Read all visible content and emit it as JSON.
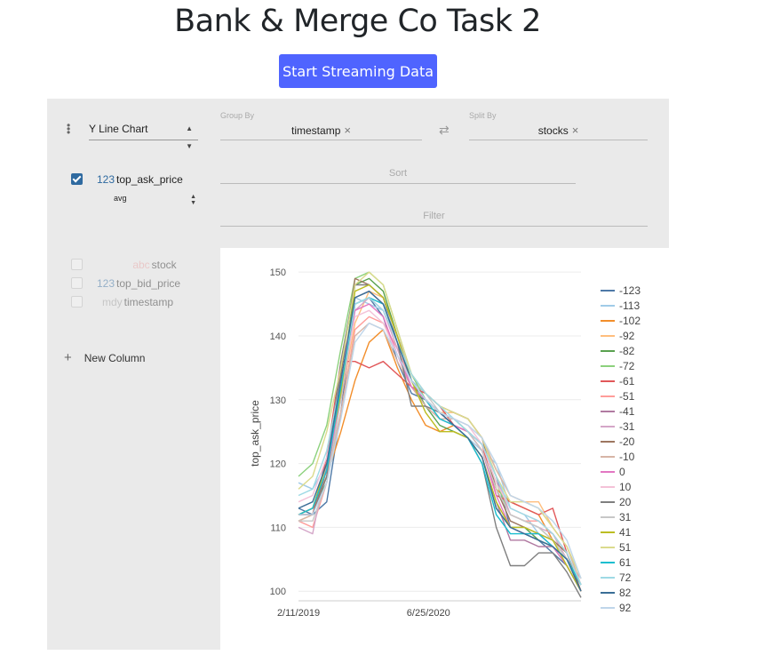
{
  "page": {
    "title": "Bank & Merge Co Task 2",
    "stream_button": "Start Streaming Data"
  },
  "config": {
    "plugin": "Y Line Chart",
    "group_by_label": "Group By",
    "group_by_value": "timestamp",
    "split_by_label": "Split By",
    "split_by_value": "stocks",
    "sort_placeholder": "Sort",
    "filter_placeholder": "Filter",
    "remove_glyph": "×",
    "swap_glyph": "⇄"
  },
  "columns": {
    "active": [
      {
        "type": "123",
        "name": "top_ask_price",
        "aggregate": "avg",
        "checked": true
      }
    ],
    "inactive": [
      {
        "type": "abc",
        "name": "stock",
        "type_color": "#e8a0a0"
      },
      {
        "type": "123",
        "name": "top_bid_price",
        "type_color": "#2f6aa0"
      },
      {
        "type": "mdy",
        "name": "timestamp",
        "type_color": "#999999"
      }
    ],
    "new_column": "New Column"
  },
  "chart_data": {
    "type": "line",
    "ylabel": "top_ask_price",
    "xlabel": "",
    "ylim": [
      98.5,
      151
    ],
    "yticks": [
      "150",
      "140",
      "130",
      "120",
      "110",
      "100"
    ],
    "xticks": [
      "2/11/2019",
      "6/25/2020"
    ],
    "x": [
      0,
      0.05,
      0.1,
      0.15,
      0.2,
      0.25,
      0.3,
      0.35,
      0.4,
      0.45,
      0.5,
      0.55,
      0.6,
      0.65,
      0.7,
      0.75,
      0.8,
      0.85,
      0.9,
      0.95,
      1.0
    ],
    "legend_position": "right",
    "series": [
      {
        "name": "-123",
        "color": "#4e79a7",
        "values": [
          113,
          112,
          114,
          128,
          145,
          146,
          143,
          136,
          131,
          130,
          128,
          127,
          125,
          123,
          118,
          110,
          109,
          108,
          106,
          104,
          100
        ]
      },
      {
        "name": "-113",
        "color": "#a0cbe8",
        "values": [
          117,
          116,
          120,
          130,
          146,
          145,
          144,
          139,
          133,
          131,
          129,
          126,
          124,
          122,
          120,
          113,
          112,
          109,
          107,
          105,
          101
        ]
      },
      {
        "name": "-102",
        "color": "#f28e2b",
        "values": [
          112,
          113,
          118,
          125,
          133,
          139,
          141,
          135,
          130,
          126,
          125,
          126,
          125,
          122,
          116,
          114,
          113,
          112,
          108,
          106,
          100
        ]
      },
      {
        "name": "-92",
        "color": "#ffbe7d",
        "values": [
          111,
          112,
          119,
          130,
          142,
          147,
          146,
          140,
          134,
          130,
          128,
          128,
          127,
          124,
          119,
          115,
          114,
          114,
          110,
          107,
          102
        ]
      },
      {
        "name": "-82",
        "color": "#59a14f",
        "values": [
          112,
          113,
          117,
          131,
          148,
          149,
          147,
          140,
          133,
          129,
          126,
          125,
          124,
          121,
          113,
          110,
          110,
          108,
          107,
          104,
          100
        ]
      },
      {
        "name": "-72",
        "color": "#8cd17d",
        "values": [
          118,
          120,
          126,
          138,
          149,
          150,
          148,
          141,
          134,
          130,
          128,
          127,
          125,
          123,
          117,
          112,
          111,
          110,
          108,
          105,
          101
        ]
      },
      {
        "name": "-61",
        "color": "#e15759",
        "values": [
          112,
          112,
          121,
          136,
          136,
          135,
          136,
          134,
          132,
          131,
          129,
          126,
          125,
          123,
          115,
          114,
          113,
          112,
          113,
          106,
          100
        ]
      },
      {
        "name": "-51",
        "color": "#ff9d9a",
        "values": [
          111,
          110,
          117,
          128,
          141,
          143,
          142,
          138,
          133,
          130,
          127,
          126,
          125,
          122,
          116,
          112,
          111,
          111,
          109,
          106,
          101
        ]
      },
      {
        "name": "-41",
        "color": "#b07aa1",
        "values": [
          112,
          112,
          118,
          132,
          146,
          147,
          145,
          139,
          133,
          130,
          128,
          126,
          124,
          121,
          114,
          108,
          108,
          107,
          107,
          105,
          101
        ]
      },
      {
        "name": "-31",
        "color": "#d4a6c8",
        "values": [
          110,
          109,
          120,
          135,
          144,
          146,
          144,
          138,
          132,
          129,
          127,
          126,
          125,
          123,
          118,
          112,
          111,
          110,
          109,
          105,
          102
        ]
      },
      {
        "name": "-20",
        "color": "#9d7660",
        "values": [
          112,
          112,
          119,
          134,
          149,
          148,
          146,
          140,
          134,
          131,
          129,
          128,
          127,
          124,
          116,
          111,
          110,
          109,
          108,
          106,
          100
        ]
      },
      {
        "name": "-10",
        "color": "#d7b5a6",
        "values": [
          111,
          112,
          118,
          128,
          140,
          142,
          141,
          136,
          132,
          129,
          127,
          127,
          126,
          124,
          119,
          115,
          114,
          113,
          110,
          107,
          101
        ]
      },
      {
        "name": "0",
        "color": "#e377c2",
        "values": [
          112,
          113,
          119,
          130,
          144,
          145,
          143,
          137,
          132,
          130,
          128,
          126,
          125,
          122,
          115,
          110,
          109,
          109,
          107,
          104,
          100
        ]
      },
      {
        "name": "10",
        "color": "#f4c2d8",
        "values": [
          114,
          115,
          121,
          131,
          143,
          144,
          142,
          137,
          133,
          130,
          128,
          127,
          126,
          123,
          117,
          113,
          112,
          111,
          109,
          106,
          101
        ]
      },
      {
        "name": "20",
        "color": "#7f7f7f",
        "values": [
          112,
          112,
          118,
          136,
          148,
          148,
          146,
          139,
          129,
          129,
          128,
          126,
          124,
          120,
          110,
          104,
          104,
          106,
          106,
          103,
          99
        ]
      },
      {
        "name": "31",
        "color": "#c7c7c7",
        "values": [
          111,
          111,
          117,
          130,
          145,
          146,
          145,
          140,
          134,
          131,
          128,
          127,
          125,
          122,
          116,
          112,
          111,
          110,
          108,
          105,
          101
        ]
      },
      {
        "name": "41",
        "color": "#bcbd22",
        "values": [
          112,
          113,
          120,
          131,
          147,
          148,
          146,
          140,
          133,
          128,
          125,
          125,
          124,
          121,
          114,
          110,
          110,
          109,
          108,
          104,
          100
        ]
      },
      {
        "name": "51",
        "color": "#dbdb8d",
        "values": [
          116,
          118,
          125,
          135,
          148,
          150,
          148,
          141,
          134,
          131,
          129,
          128,
          127,
          124,
          118,
          114,
          114,
          113,
          110,
          107,
          102
        ]
      },
      {
        "name": "61",
        "color": "#17becf",
        "values": [
          112,
          113,
          119,
          132,
          145,
          146,
          145,
          139,
          133,
          130,
          127,
          126,
          124,
          120,
          112,
          109,
          109,
          109,
          107,
          105,
          101
        ]
      },
      {
        "name": "72",
        "color": "#9edae5",
        "values": [
          115,
          116,
          122,
          133,
          145,
          146,
          144,
          139,
          134,
          131,
          129,
          127,
          125,
          123,
          118,
          113,
          112,
          111,
          109,
          106,
          101
        ]
      },
      {
        "name": "82",
        "color": "#3a6e96",
        "values": [
          113,
          114,
          120,
          133,
          146,
          147,
          145,
          139,
          133,
          130,
          128,
          126,
          124,
          121,
          113,
          110,
          109,
          108,
          107,
          105,
          100
        ]
      },
      {
        "name": "92",
        "color": "#bfd6ea",
        "values": [
          112,
          112,
          117,
          127,
          139,
          142,
          141,
          137,
          133,
          130,
          128,
          127,
          126,
          124,
          120,
          115,
          114,
          113,
          111,
          108,
          102
        ]
      }
    ]
  }
}
